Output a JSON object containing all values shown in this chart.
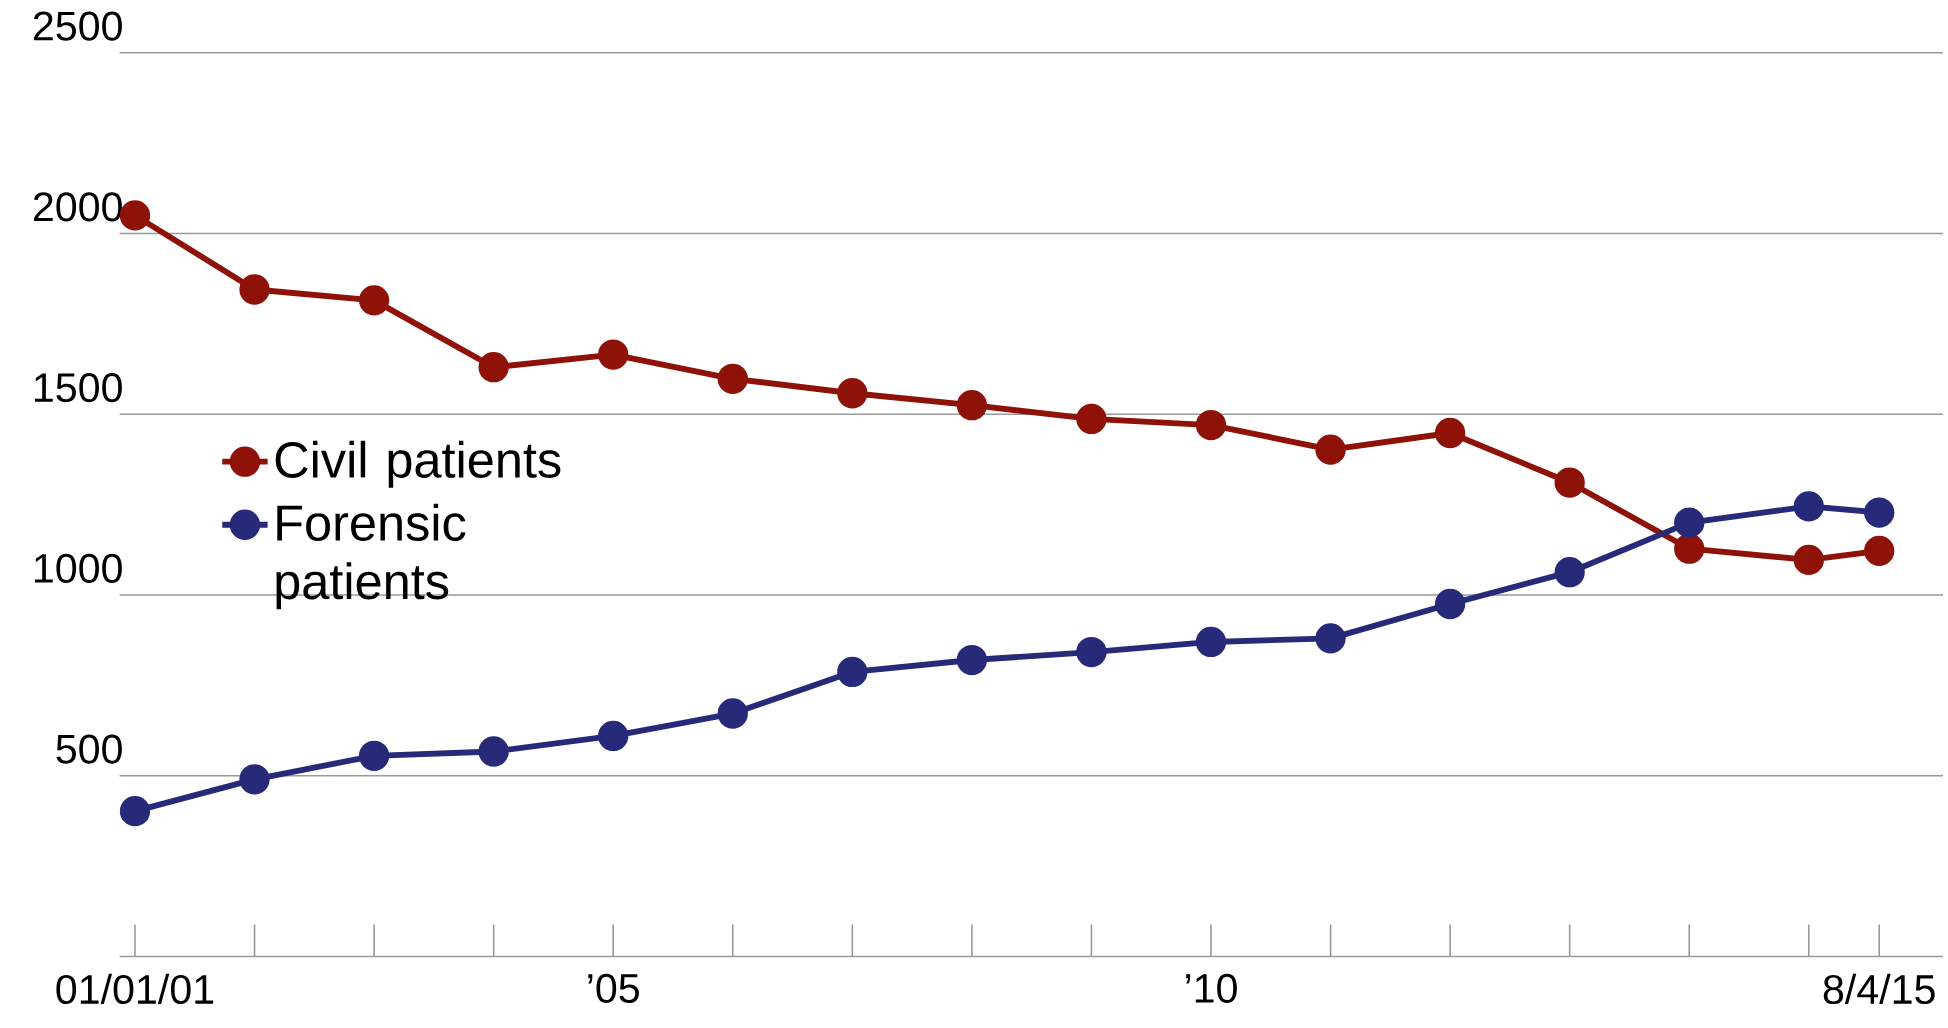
{
  "chart_data": {
    "type": "line",
    "x": [
      "2001-01-01",
      "2002-01-01",
      "2003-01-01",
      "2004-01-01",
      "2005-01-01",
      "2006-01-01",
      "2007-01-01",
      "2008-01-01",
      "2009-01-01",
      "2010-01-01",
      "2011-01-01",
      "2012-01-01",
      "2013-01-01",
      "2014-01-01",
      "2015-01-01",
      "2015-08-04"
    ],
    "series": [
      {
        "name": "Civil patients",
        "color": "#8e1208",
        "values": [
          2050,
          1845,
          1815,
          1630,
          1665,
          1598,
          1558,
          1525,
          1487,
          1470,
          1402,
          1448,
          1311,
          1128,
          1097,
          1122
        ]
      },
      {
        "name": "Forensic patients",
        "color": "#262a78",
        "values": [
          402,
          490,
          555,
          567,
          610,
          672,
          787,
          820,
          842,
          870,
          880,
          975,
          1063,
          1200,
          1245,
          1228
        ]
      }
    ],
    "xlim": [
      "2000-11-15",
      "2016-02-15"
    ],
    "xticks": [
      {
        "value": "2001-01-01",
        "label": "01/01/01"
      },
      {
        "value": "2002-01-01",
        "label": null
      },
      {
        "value": "2003-01-01",
        "label": null
      },
      {
        "value": "2004-01-01",
        "label": null
      },
      {
        "value": "2005-01-01",
        "label": "’05"
      },
      {
        "value": "2006-01-01",
        "label": null
      },
      {
        "value": "2007-01-01",
        "label": null
      },
      {
        "value": "2008-01-01",
        "label": null
      },
      {
        "value": "2009-01-01",
        "label": null
      },
      {
        "value": "2010-01-01",
        "label": "’10"
      },
      {
        "value": "2011-01-01",
        "label": null
      },
      {
        "value": "2012-01-01",
        "label": null
      },
      {
        "value": "2013-01-01",
        "label": null
      },
      {
        "value": "2014-01-01",
        "label": null
      },
      {
        "value": "2015-01-01",
        "label": null
      },
      {
        "value": "2015-08-04",
        "label": "8/4/15"
      }
    ],
    "ylim": [
      0,
      2500
    ],
    "yticks": [
      500,
      1000,
      1500,
      2000,
      2500
    ],
    "grid": "y",
    "legend": "left",
    "marker": "circle",
    "line_style": "solid"
  }
}
